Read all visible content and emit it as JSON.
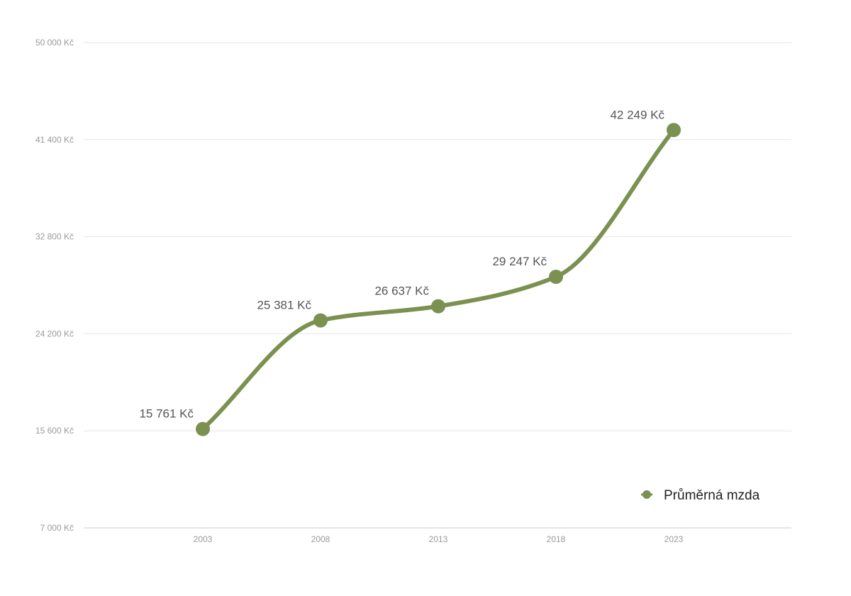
{
  "chart_data": {
    "type": "line",
    "title": "",
    "xlabel": "",
    "ylabel": "",
    "categories": [
      "2003",
      "2008",
      "2013",
      "2018",
      "2023"
    ],
    "series": [
      {
        "name": "Průměrná mzda",
        "values": [
          15761,
          25381,
          26637,
          29247,
          42249
        ],
        "value_labels": [
          "15 761 Kč",
          "25 381 Kč",
          "26 637 Kč",
          "29 247 Kč",
          "42 249 Kč"
        ],
        "color": "#7a9150"
      }
    ],
    "y_ticks": [
      7000,
      15600,
      24200,
      32800,
      41400,
      50000
    ],
    "y_tick_labels": [
      "7 000 Kč",
      "15 600 Kč",
      "24 200 Kč",
      "32 800 Kč",
      "41 400 Kč",
      "50 000 Kč"
    ],
    "ylim": [
      7000,
      50000
    ],
    "grid": true,
    "legend": {
      "position": "bottom-right",
      "marker": "circle"
    },
    "curve": "smooth",
    "colors": {
      "line": "#7a9150",
      "grid": "#e6e6e6",
      "tick_text": "#9a9a9a",
      "label_text": "#555555"
    }
  }
}
